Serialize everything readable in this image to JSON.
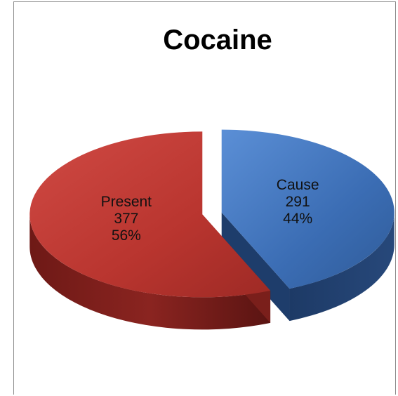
{
  "chart_data": {
    "type": "pie",
    "title": "Cocaine",
    "categories": [
      "Cause",
      "Present"
    ],
    "values": [
      291,
      377
    ],
    "percentages": [
      "44%",
      "56%"
    ],
    "exploded": true,
    "style": "3d",
    "colors": {
      "Cause": "#3d6fb6",
      "Present": "#b53530"
    },
    "legend": "none"
  }
}
